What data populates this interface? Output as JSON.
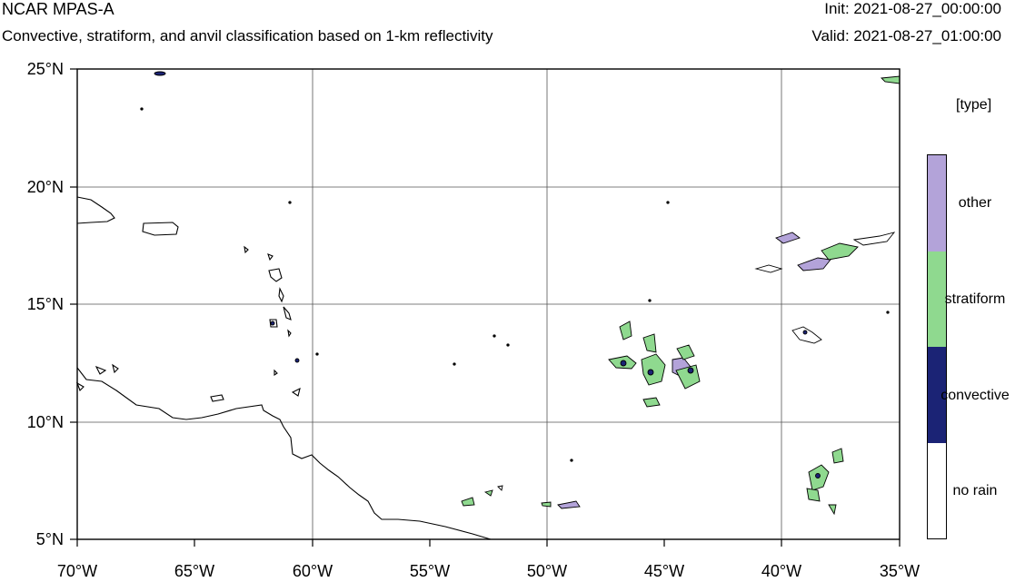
{
  "header": {
    "title": "NCAR MPAS-A",
    "subtitle": "Convective, stratiform, and anvil classification based on 1-km reflectivity",
    "init_label": "Init:",
    "init_value": "2021-08-27_00:00:00",
    "valid_label": "Valid:",
    "valid_value": "2021-08-27_01:00:00"
  },
  "map": {
    "lat_labels": [
      "25°N",
      "20°N",
      "15°N",
      "10°N",
      "5°N"
    ],
    "lon_labels": [
      "70°W",
      "65°W",
      "60°W",
      "55°W",
      "50°W",
      "45°W",
      "40°W",
      "35°W"
    ],
    "lat_range": [
      5,
      25
    ],
    "lon_range": [
      -70,
      -35
    ],
    "grid": true
  },
  "legend": {
    "title": "[type]",
    "entries": [
      {
        "label": "other",
        "color": "#b3a3d9"
      },
      {
        "label": "stratiform",
        "color": "#8fd98f"
      },
      {
        "label": "convective",
        "color": "#1b2375"
      },
      {
        "label": "no rain",
        "color": "#ffffff"
      }
    ]
  }
}
